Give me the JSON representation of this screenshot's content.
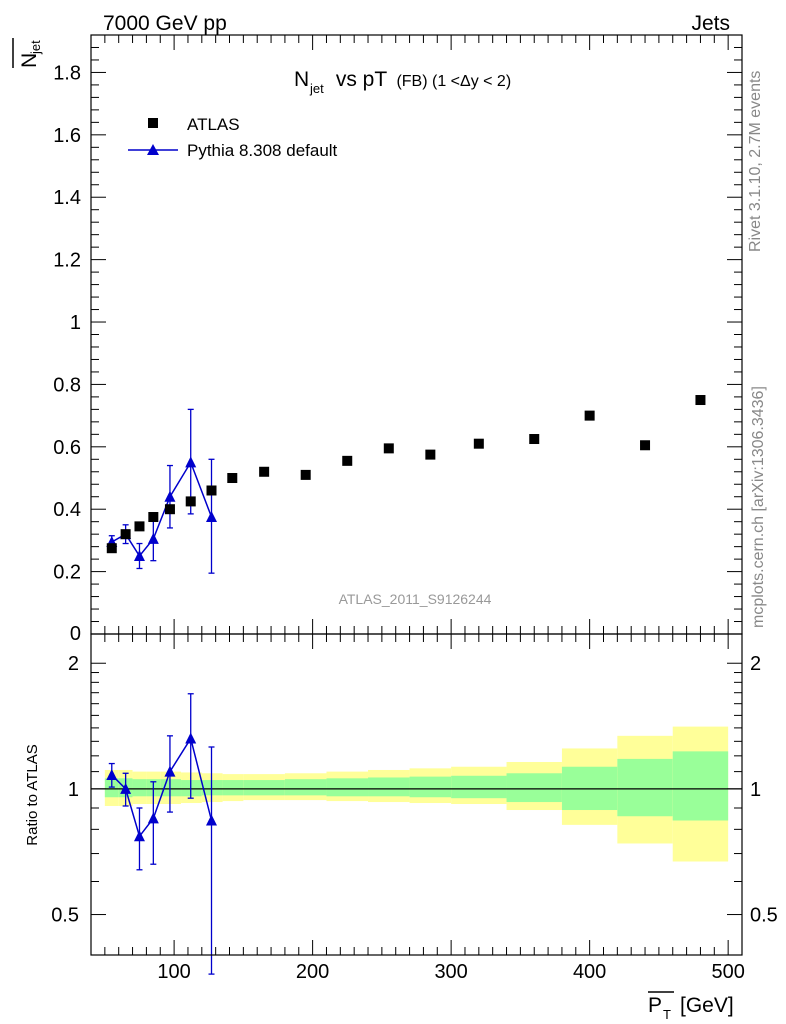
{
  "header": {
    "left": "7000 GeV pp",
    "right": "Jets"
  },
  "side_labels": {
    "rivet": "Rivet 3.1.10,  2.7M events",
    "mcplots": "mcplots.cern.ch [arXiv:1306.3436]"
  },
  "analysis_id": "ATLAS_2011_S9126244",
  "chart_data": [
    {
      "type": "scatter",
      "title": "N_jet vs pT (FB) (1 < Δy < 2)",
      "title_parts": {
        "main": "N",
        "sub": "jet",
        "rest": " vs pT",
        "small": " (FB) (1 <Δy < 2)"
      },
      "ylabel": "N̄jet",
      "xlim": [
        40,
        510
      ],
      "ylim": [
        0,
        1.92
      ],
      "yticks": [
        0.2,
        0.4,
        0.6,
        0.8,
        1,
        1.2,
        1.4,
        1.6,
        1.8
      ],
      "ytick_labels": [
        "0.2",
        "0.4",
        "0.6",
        "0.8",
        "1",
        "1.2",
        "1.4",
        "1.6",
        "1.8"
      ],
      "ytick_label_partial": "0",
      "legend_position": "top-left",
      "series": [
        {
          "name": "ATLAS",
          "marker": "square",
          "color": "#000000",
          "x": [
            55,
            65,
            75,
            85,
            97,
            112,
            127,
            142,
            165,
            195,
            225,
            255,
            285,
            320,
            360,
            400,
            440,
            480
          ],
          "y": [
            0.275,
            0.32,
            0.345,
            0.375,
            0.4,
            0.425,
            0.46,
            0.5,
            0.52,
            0.51,
            0.555,
            0.595,
            0.575,
            0.61,
            0.625,
            0.7,
            0.605,
            0.75
          ]
        },
        {
          "name": "Pythia 8.308 default",
          "marker": "triangle",
          "color": "#0000cc",
          "x": [
            55,
            65,
            75,
            85,
            97,
            112,
            127
          ],
          "y": [
            0.295,
            0.32,
            0.25,
            0.305,
            0.44,
            0.55,
            0.375
          ],
          "yerr_low": [
            0.02,
            0.03,
            0.04,
            0.07,
            0.1,
            0.165,
            0.18
          ],
          "yerr_high": [
            0.02,
            0.03,
            0.04,
            0.07,
            0.1,
            0.17,
            0.185
          ]
        }
      ]
    },
    {
      "type": "line",
      "ylabel": "Ratio to ATLAS",
      "xlabel": "P̄T [GeV]",
      "xlim": [
        40,
        510
      ],
      "ylim": [
        0.4,
        2.35
      ],
      "log_y": true,
      "xticks": [
        100,
        200,
        300,
        400,
        500
      ],
      "xtick_labels": [
        "100",
        "200",
        "300",
        "400",
        "500"
      ],
      "yticks": [
        0.5,
        1,
        2
      ],
      "ytick_labels": [
        "0.5",
        "1",
        "2"
      ],
      "reference_line": 1,
      "bands": {
        "edges": [
          50,
          60,
          70,
          80,
          90,
          105,
          120,
          135,
          150,
          180,
          210,
          240,
          270,
          300,
          340,
          380,
          420,
          460,
          500
        ],
        "yellow_low": [
          0.91,
          0.91,
          0.92,
          0.92,
          0.92,
          0.925,
          0.93,
          0.935,
          0.94,
          0.94,
          0.935,
          0.93,
          0.925,
          0.92,
          0.89,
          0.82,
          0.74,
          0.67
        ],
        "yellow_high": [
          1.11,
          1.11,
          1.1,
          1.1,
          1.1,
          1.095,
          1.09,
          1.085,
          1.085,
          1.09,
          1.1,
          1.11,
          1.12,
          1.13,
          1.16,
          1.25,
          1.34,
          1.41
        ],
        "green_low": [
          0.955,
          0.955,
          0.96,
          0.96,
          0.96,
          0.96,
          0.965,
          0.965,
          0.965,
          0.965,
          0.96,
          0.96,
          0.955,
          0.95,
          0.93,
          0.89,
          0.86,
          0.84
        ],
        "green_high": [
          1.06,
          1.06,
          1.055,
          1.055,
          1.055,
          1.05,
          1.05,
          1.05,
          1.05,
          1.055,
          1.06,
          1.065,
          1.07,
          1.075,
          1.09,
          1.13,
          1.18,
          1.23
        ]
      },
      "series": [
        {
          "name": "Pythia 8.308 default",
          "color": "#0000cc",
          "x": [
            55,
            65,
            75,
            85,
            97,
            112,
            127
          ],
          "y": [
            1.08,
            1.0,
            0.77,
            0.85,
            1.1,
            1.32,
            0.84
          ],
          "yerr_low": [
            0.07,
            0.09,
            0.13,
            0.19,
            0.22,
            0.37,
            0.48
          ],
          "yerr_high": [
            0.07,
            0.09,
            0.13,
            0.19,
            0.24,
            0.37,
            0.42
          ]
        }
      ]
    }
  ]
}
